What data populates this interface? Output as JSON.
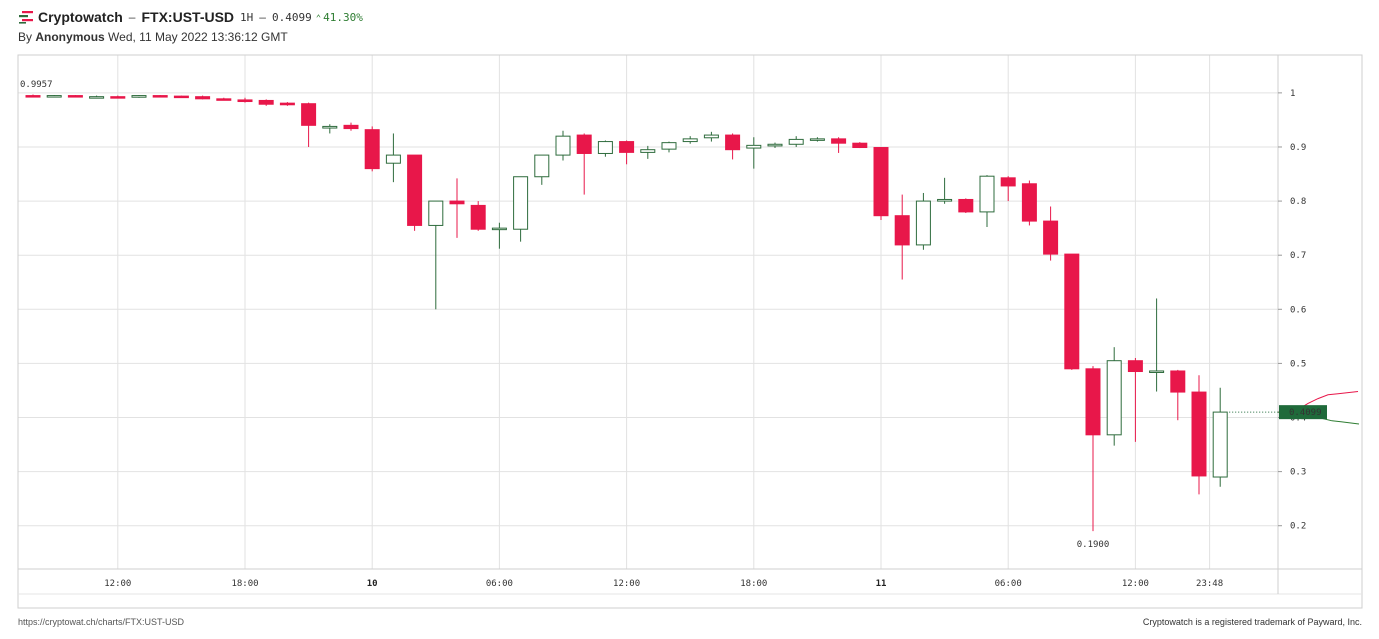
{
  "header": {
    "brand": "Cryptowatch",
    "dash": "–",
    "pair": "FTX:UST-USD",
    "interval": "1H",
    "price": "0.4099",
    "change": "41.30%",
    "change_arrow_icon": "up-caret-icon",
    "change_color": "#2e7d32",
    "by_prefix": "By",
    "author": "Anonymous",
    "timestamp": "Wed, 11 May 2022 13:36:12 GMT"
  },
  "footer": {
    "url": "https://cryptowat.ch/charts/FTX:UST-USD",
    "trademark": "Cryptowatch is a registered trademark of Payward, Inc."
  },
  "colors": {
    "up": "#2e6b3c",
    "down": "#e8174a",
    "grid": "#e2e2e2",
    "price_tag": "#1f6a3a",
    "depth_bid": "#2e7d32",
    "depth_ask": "#e8174a"
  },
  "chart_data": {
    "type": "candlestick",
    "interval": "1H",
    "ylim": [
      0.12,
      1.07
    ],
    "yticks": [
      1,
      0.9,
      0.8,
      0.7,
      0.6,
      0.5,
      0.4,
      0.3,
      0.2
    ],
    "ytick_labels": [
      "1",
      "0.9",
      "0.8",
      "0.7",
      "0.6",
      "0.5",
      "0.4",
      "0.3",
      "0.2"
    ],
    "xticks": [
      {
        "label": "12:00",
        "index": 4,
        "bold": false
      },
      {
        "label": "18:00",
        "index": 10,
        "bold": false
      },
      {
        "label": "10",
        "index": 16,
        "bold": true
      },
      {
        "label": "06:00",
        "index": 22,
        "bold": false
      },
      {
        "label": "12:00",
        "index": 28,
        "bold": false
      },
      {
        "label": "18:00",
        "index": 34,
        "bold": false
      },
      {
        "label": "11",
        "index": 40,
        "bold": true
      },
      {
        "label": "06:00",
        "index": 46,
        "bold": false
      },
      {
        "label": "12:00",
        "index": 52,
        "bold": false
      },
      {
        "label": "23:48",
        "index": 55.5,
        "bold": false
      }
    ],
    "candles": [
      [
        0.995,
        0.997,
        0.993,
        0.994
      ],
      [
        0.994,
        0.996,
        0.992,
        0.995
      ],
      [
        0.995,
        0.996,
        0.993,
        0.993
      ],
      [
        0.993,
        0.995,
        0.992,
        0.993
      ],
      [
        0.993,
        0.995,
        0.992,
        0.992
      ],
      [
        0.992,
        0.996,
        0.991,
        0.995
      ],
      [
        0.995,
        0.996,
        0.993,
        0.994
      ],
      [
        0.994,
        0.995,
        0.993,
        0.993
      ],
      [
        0.993,
        0.995,
        0.988,
        0.989
      ],
      [
        0.989,
        0.991,
        0.986,
        0.987
      ],
      [
        0.987,
        0.991,
        0.982,
        0.984
      ],
      [
        0.986,
        0.988,
        0.976,
        0.979
      ],
      [
        0.981,
        0.983,
        0.976,
        0.978
      ],
      [
        0.98,
        0.982,
        0.9,
        0.94
      ],
      [
        0.935,
        0.942,
        0.925,
        0.938
      ],
      [
        0.94,
        0.945,
        0.93,
        0.934
      ],
      [
        0.932,
        0.938,
        0.855,
        0.86
      ],
      [
        0.87,
        0.925,
        0.835,
        0.885
      ],
      [
        0.885,
        0.885,
        0.745,
        0.755
      ],
      [
        0.755,
        0.8,
        0.6,
        0.8
      ],
      [
        0.8,
        0.842,
        0.732,
        0.795
      ],
      [
        0.792,
        0.8,
        0.745,
        0.748
      ],
      [
        0.748,
        0.76,
        0.712,
        0.75
      ],
      [
        0.748,
        0.845,
        0.725,
        0.845
      ],
      [
        0.845,
        0.885,
        0.83,
        0.885
      ],
      [
        0.885,
        0.93,
        0.875,
        0.92
      ],
      [
        0.922,
        0.925,
        0.812,
        0.888
      ],
      [
        0.888,
        0.912,
        0.882,
        0.91
      ],
      [
        0.91,
        0.912,
        0.868,
        0.89
      ],
      [
        0.89,
        0.902,
        0.878,
        0.895
      ],
      [
        0.896,
        0.91,
        0.89,
        0.908
      ],
      [
        0.91,
        0.92,
        0.906,
        0.915
      ],
      [
        0.917,
        0.928,
        0.91,
        0.922
      ],
      [
        0.922,
        0.925,
        0.877,
        0.895
      ],
      [
        0.898,
        0.918,
        0.86,
        0.903
      ],
      [
        0.902,
        0.908,
        0.898,
        0.905
      ],
      [
        0.905,
        0.92,
        0.9,
        0.914
      ],
      [
        0.914,
        0.918,
        0.91,
        0.915
      ],
      [
        0.915,
        0.918,
        0.889,
        0.907
      ],
      [
        0.907,
        0.909,
        0.898,
        0.899
      ],
      [
        0.899,
        0.9,
        0.765,
        0.773
      ],
      [
        0.773,
        0.812,
        0.655,
        0.719
      ],
      [
        0.719,
        0.815,
        0.71,
        0.8
      ],
      [
        0.8,
        0.843,
        0.795,
        0.803
      ],
      [
        0.803,
        0.805,
        0.778,
        0.78
      ],
      [
        0.78,
        0.848,
        0.752,
        0.846
      ],
      [
        0.843,
        0.846,
        0.8,
        0.828
      ],
      [
        0.832,
        0.838,
        0.755,
        0.763
      ],
      [
        0.763,
        0.79,
        0.69,
        0.702
      ],
      [
        0.702,
        0.702,
        0.488,
        0.49
      ],
      [
        0.49,
        0.495,
        0.19,
        0.368
      ],
      [
        0.368,
        0.53,
        0.348,
        0.505
      ],
      [
        0.505,
        0.51,
        0.355,
        0.485
      ],
      [
        0.486,
        0.62,
        0.448,
        0.486
      ],
      [
        0.486,
        0.488,
        0.395,
        0.447
      ],
      [
        0.447,
        0.478,
        0.258,
        0.292
      ],
      [
        0.29,
        0.455,
        0.272,
        0.41
      ]
    ],
    "open_label": "0.9957",
    "open_value": 0.9957,
    "low_label": "0.1900",
    "low_value": 0.19,
    "low_index": 50,
    "last_label": "0.4099",
    "last_value": 0.4099,
    "depth": {
      "ask": [
        [
          0.4099,
          0.4099
        ],
        [
          0.42,
          0.4099
        ],
        [
          0.44,
          0.4148
        ],
        [
          0.445,
          0.426
        ],
        [
          0.445,
          0.435
        ],
        [
          0.446,
          0.442
        ],
        [
          0.446,
          0.444
        ],
        [
          0.446,
          0.446
        ],
        [
          0.446,
          0.448
        ]
      ],
      "bid": [
        [
          0.4099,
          0.4099
        ],
        [
          0.39,
          0.408
        ],
        [
          0.38,
          0.406
        ],
        [
          0.37,
          0.404
        ],
        [
          0.36,
          0.401
        ],
        [
          0.35,
          0.398
        ],
        [
          0.352,
          0.394
        ],
        [
          0.35,
          0.392
        ],
        [
          0.352,
          0.39
        ],
        [
          0.35,
          0.388
        ]
      ]
    }
  }
}
